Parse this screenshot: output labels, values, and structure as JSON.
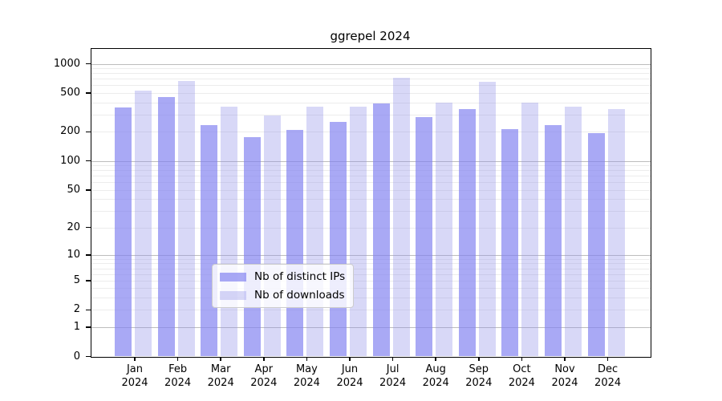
{
  "title": "ggrepel 2024",
  "chart_data": {
    "type": "bar",
    "title": "ggrepel 2024",
    "categories": [
      "Jan 2024",
      "Feb 2024",
      "Mar 2024",
      "Apr 2024",
      "May 2024",
      "Jun 2024",
      "Jul 2024",
      "Aug 2024",
      "Sep 2024",
      "Oct 2024",
      "Nov 2024",
      "Dec 2024"
    ],
    "series": [
      {
        "name": "Nb of distinct IPs",
        "fill": "rgba(128,128,240,0.68)",
        "solid_equivalent": "#a8a8f7",
        "values": [
          355,
          457,
          236,
          175,
          208,
          255,
          390,
          282,
          340,
          215,
          236,
          193
        ]
      },
      {
        "name": "Nb of downloads",
        "fill": "rgba(144,144,232,0.35)",
        "solid_equivalent": "#d8d8f7",
        "values": [
          528,
          660,
          362,
          293,
          366,
          365,
          714,
          396,
          650,
          402,
          360,
          340
        ]
      }
    ],
    "xlabel": "",
    "ylabel": "",
    "y_axis": {
      "scale": "log1p",
      "tick_labels": [
        "0",
        "1",
        "2",
        "5",
        "10",
        "20",
        "50",
        "100",
        "200",
        "500",
        "1000"
      ],
      "tick_values": [
        0,
        1,
        2,
        5,
        10,
        20,
        50,
        100,
        200,
        500,
        1000
      ],
      "ylim": [
        0,
        1400
      ]
    },
    "grid": true,
    "grid_major_color": "#bdbdbd",
    "grid_minor_color": "#ececec",
    "legend_position": "bottom-center-inside"
  }
}
